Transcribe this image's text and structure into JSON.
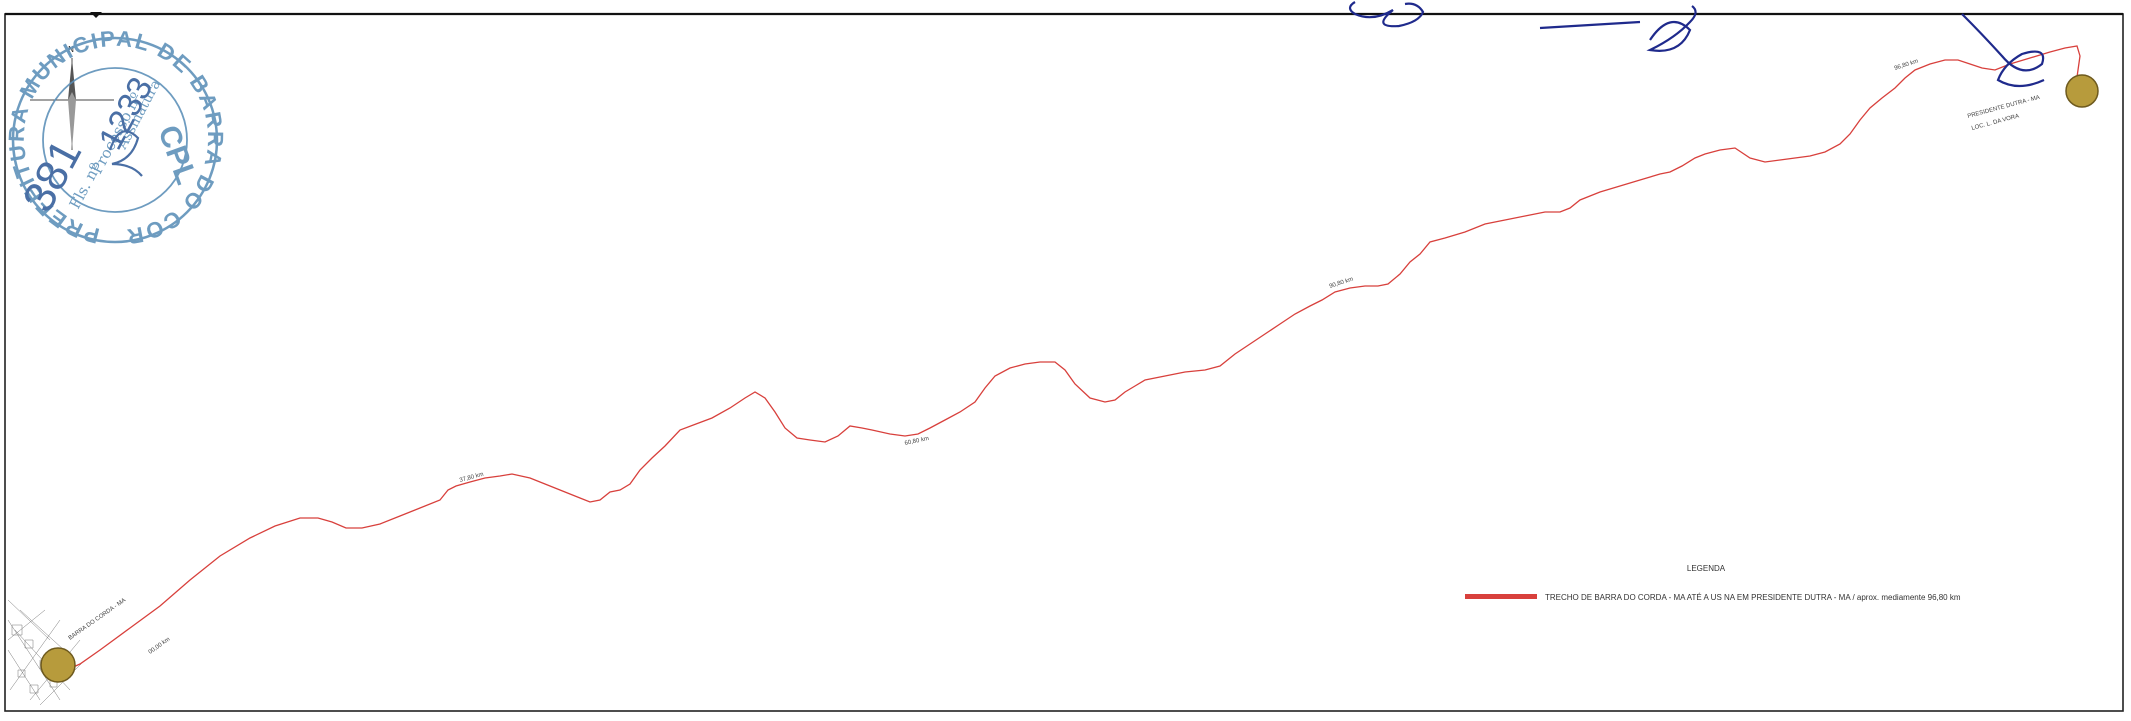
{
  "map": {
    "north_label": "N",
    "compass_marks": [
      "O",
      "E",
      "S"
    ],
    "route_color": "#d8403c",
    "endpoint_color": "#b79b3c",
    "route_labels": {
      "start": "BARRA DO CORDA - MA",
      "start_distance": "00,00 km",
      "d1": "37,80 km",
      "d2": "60,80 km",
      "d3": "90,80 km",
      "d4": "96,80 km",
      "end": "PRESIDENTE DUTRA - MA",
      "end_sub": "LOC. L. DA VORA"
    }
  },
  "legend": {
    "title": "LEGENDA",
    "swatch_color": "#d8403c",
    "item": "TRECHO DE BARRA DO CORDA - MA ATÉ A US NA EM PRESIDENTE DUTRA - MA / aprox. mediamente 96,80 km"
  },
  "stamp": {
    "top": "CPL",
    "ring": "PREFEITURA MUNICIPAL DE BARRA DO CORDA - MA",
    "fls_label": "Fls. nº",
    "fls_number": "381",
    "processo_label": "Processo nº",
    "processo_number": "1233",
    "assinatura": "Assinatura",
    "color": "#5b8fb8"
  },
  "ink_color": "#1f2a8c"
}
